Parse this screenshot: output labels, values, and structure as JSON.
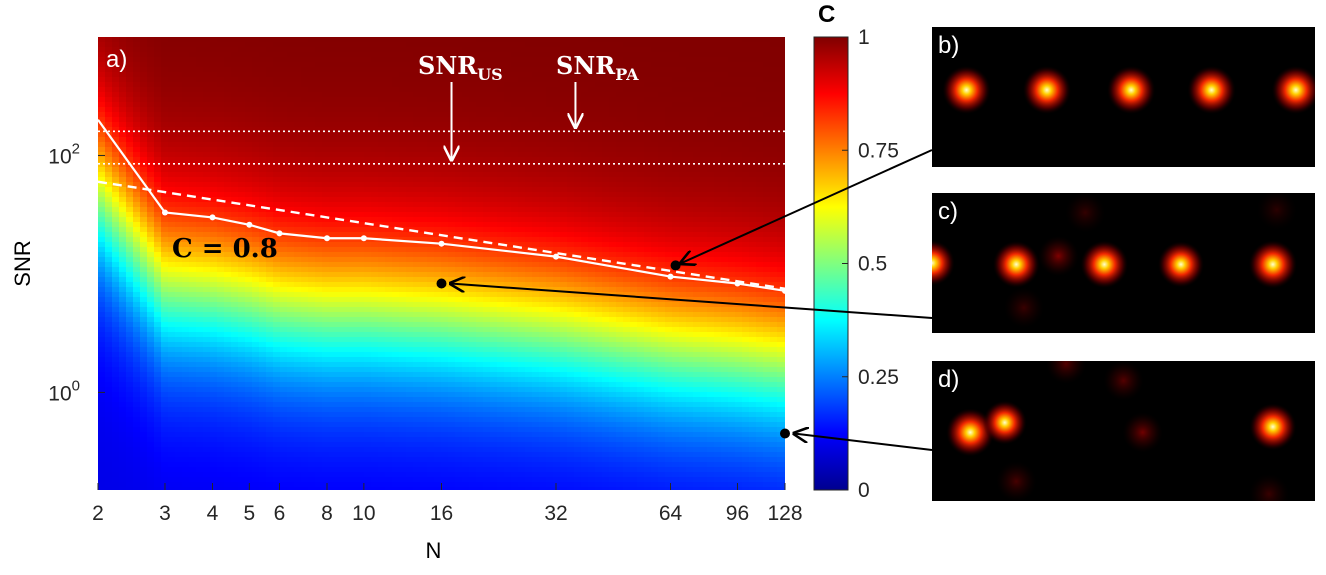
{
  "chart_data": {
    "type": "heatmap",
    "xlabel": "N",
    "ylabel": "SNR",
    "x_scale": "log",
    "y_scale": "log",
    "x_ticks": [
      2,
      3,
      4,
      5,
      6,
      8,
      10,
      16,
      32,
      64,
      96,
      128
    ],
    "x_tick_labels": [
      "2",
      "3",
      "4",
      "5",
      "6",
      "8",
      "10",
      "16",
      "32",
      "64",
      "96",
      "128"
    ],
    "xlim": [
      2,
      128
    ],
    "y_ticks": [
      1,
      100
    ],
    "y_tick_base": "10",
    "y_tick_exponents": [
      "0",
      "2"
    ],
    "ylim": [
      0.15,
      1000
    ],
    "colorbar": {
      "title": "C",
      "range": [
        0,
        1
      ],
      "ticks": [
        0,
        0.25,
        0.5,
        0.75,
        1
      ],
      "tick_labels": [
        "0",
        "0.25",
        "0.5",
        "0.75",
        "1"
      ]
    },
    "panel_label": "a)",
    "contour_label": "C = 0.8",
    "contour_c08": {
      "x": [
        2,
        3,
        4,
        5,
        6,
        8,
        10,
        16,
        32,
        64,
        96,
        128
      ],
      "y": [
        200,
        33,
        30,
        26,
        22,
        20,
        20,
        18,
        14,
        9.5,
        8.3,
        7.2
      ]
    },
    "dashed_line": {
      "x": [
        2,
        128
      ],
      "y": [
        60,
        7.5
      ]
    },
    "snr_levels": [
      {
        "label_main": "SNR",
        "label_sub": "US",
        "value": 85,
        "arrow_at_N": 17
      },
      {
        "label_main": "SNR",
        "label_sub": "PA",
        "value": 160,
        "arrow_at_N": 36
      }
    ],
    "markers": [
      {
        "target": "b",
        "N": 66,
        "SNR": 11.8
      },
      {
        "target": "c",
        "N": 16,
        "SNR": 8.3
      },
      {
        "target": "d",
        "N": 128,
        "SNR": 0.45
      }
    ],
    "insets": [
      {
        "label": "b)",
        "blobs": [
          [
            0.09,
            0.45,
            1.0
          ],
          [
            0.3,
            0.45,
            1.0
          ],
          [
            0.52,
            0.45,
            1.0
          ],
          [
            0.73,
            0.45,
            1.0
          ],
          [
            0.95,
            0.45,
            1.0
          ]
        ]
      },
      {
        "label": "c)",
        "blobs": [
          [
            0.0,
            0.5,
            0.8
          ],
          [
            0.22,
            0.51,
            0.9
          ],
          [
            0.33,
            0.45,
            0.45
          ],
          [
            0.45,
            0.51,
            0.95
          ],
          [
            0.65,
            0.51,
            0.85
          ],
          [
            0.89,
            0.51,
            1.0
          ],
          [
            0.4,
            0.14,
            0.18
          ],
          [
            0.24,
            0.82,
            0.2
          ],
          [
            0.9,
            0.12,
            0.15
          ]
        ]
      },
      {
        "label": "d)",
        "blobs": [
          [
            0.1,
            0.51,
            1.0
          ],
          [
            0.19,
            0.44,
            0.7
          ],
          [
            0.5,
            0.14,
            0.3
          ],
          [
            0.35,
            0.02,
            0.3
          ],
          [
            0.55,
            0.51,
            0.4
          ],
          [
            0.89,
            0.47,
            0.9
          ],
          [
            0.22,
            0.86,
            0.25
          ],
          [
            0.88,
            0.95,
            0.2
          ]
        ]
      }
    ]
  }
}
